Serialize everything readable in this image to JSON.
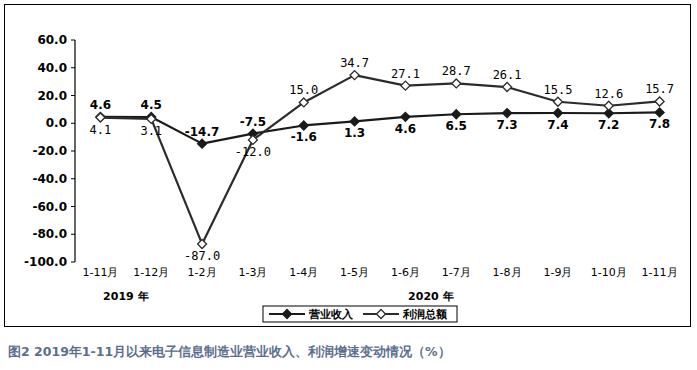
{
  "chart_data": {
    "type": "line",
    "caption": "图2 2019年1-11月以来电子信息制造业营业收入、利润增速变动情况（%）",
    "categories": [
      "1-11月",
      "1-12月",
      "1-2月",
      "1-3月",
      "1-4月",
      "1-5月",
      "1-6月",
      "1-7月",
      "1-8月",
      "1-9月",
      "1-10月",
      "1-11月"
    ],
    "category_groups": [
      {
        "label": "2019 年",
        "start": 0,
        "end": 1
      },
      {
        "label": "2020 年",
        "start": 2,
        "end": 11
      }
    ],
    "series": [
      {
        "name": "营业收入",
        "color": "#1a1a1a",
        "marker": "diamond",
        "values": [
          4.6,
          4.5,
          -14.7,
          -7.5,
          -1.6,
          1.3,
          4.6,
          6.5,
          7.3,
          7.4,
          7.2,
          7.8
        ]
      },
      {
        "name": "利润总额",
        "color": "#2b2b2b",
        "marker": "open-diamond",
        "values": [
          4.1,
          3.1,
          -87.0,
          -12.0,
          15.0,
          34.7,
          27.1,
          28.7,
          26.1,
          15.5,
          12.6,
          15.7
        ],
        "value_labels": [
          "4.1",
          "3.1",
          "-87.0",
          "-12.0",
          "15.0",
          "34.7",
          "27.1",
          "28.7",
          "26.1",
          "15.5",
          "12.6",
          "15.7"
        ]
      }
    ],
    "ylim": [
      -100,
      60
    ],
    "yticks": [
      {
        "value": -100,
        "label": "-100.0"
      },
      {
        "value": -80,
        "label": "-80.0"
      },
      {
        "value": -60,
        "label": "-60.0"
      },
      {
        "value": -40,
        "label": "-40.0"
      },
      {
        "value": -20,
        "label": "-20.0"
      },
      {
        "value": 0,
        "label": "0.0"
      },
      {
        "value": 20,
        "label": "20.0"
      },
      {
        "value": 40,
        "label": "40.0"
      },
      {
        "value": 60,
        "label": "60.0"
      }
    ],
    "grid": false,
    "legend": "bottom",
    "data_labels": true
  }
}
